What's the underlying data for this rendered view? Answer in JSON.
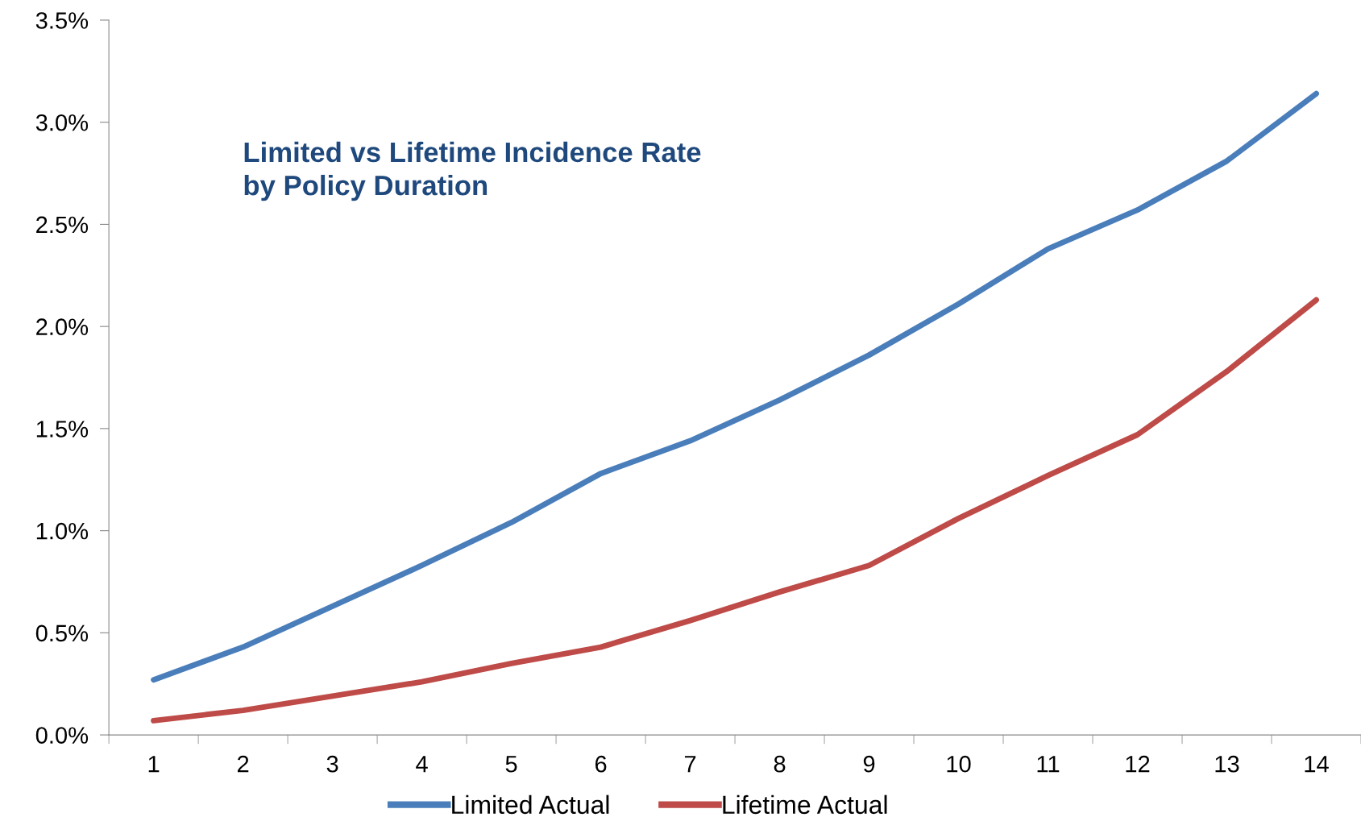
{
  "chart_data": {
    "type": "line",
    "title": "Limited vs Lifetime Incidence Rate\nby Policy Duration",
    "categories": [
      "1",
      "2",
      "3",
      "4",
      "5",
      "6",
      "7",
      "8",
      "9",
      "10",
      "11",
      "12",
      "13",
      "14"
    ],
    "series": [
      {
        "name": "Limited Actual",
        "color": "#4a7ebb",
        "values": [
          0.27,
          0.43,
          0.63,
          0.83,
          1.04,
          1.28,
          1.44,
          1.64,
          1.86,
          2.11,
          2.38,
          2.57,
          2.81,
          3.14
        ]
      },
      {
        "name": "Lifetime Actual",
        "color": "#be4b48",
        "values": [
          0.07,
          0.12,
          0.19,
          0.26,
          0.35,
          0.43,
          0.56,
          0.7,
          0.83,
          1.06,
          1.27,
          1.47,
          1.78,
          2.13
        ]
      }
    ],
    "ylim": [
      0,
      3.5
    ],
    "yticks": [
      {
        "value": 0,
        "label": "0.0%"
      },
      {
        "value": 0.5,
        "label": "0.5%"
      },
      {
        "value": 1,
        "label": "1.0%"
      },
      {
        "value": 1.5,
        "label": "1.5%"
      },
      {
        "value": 2,
        "label": "2.0%"
      },
      {
        "value": 2.5,
        "label": "2.5%"
      },
      {
        "value": 3,
        "label": "3.0%"
      },
      {
        "value": 3.5,
        "label": "3.5%"
      }
    ],
    "grid": false,
    "legend": "bottom",
    "marker": "none",
    "line_style": "solid"
  }
}
